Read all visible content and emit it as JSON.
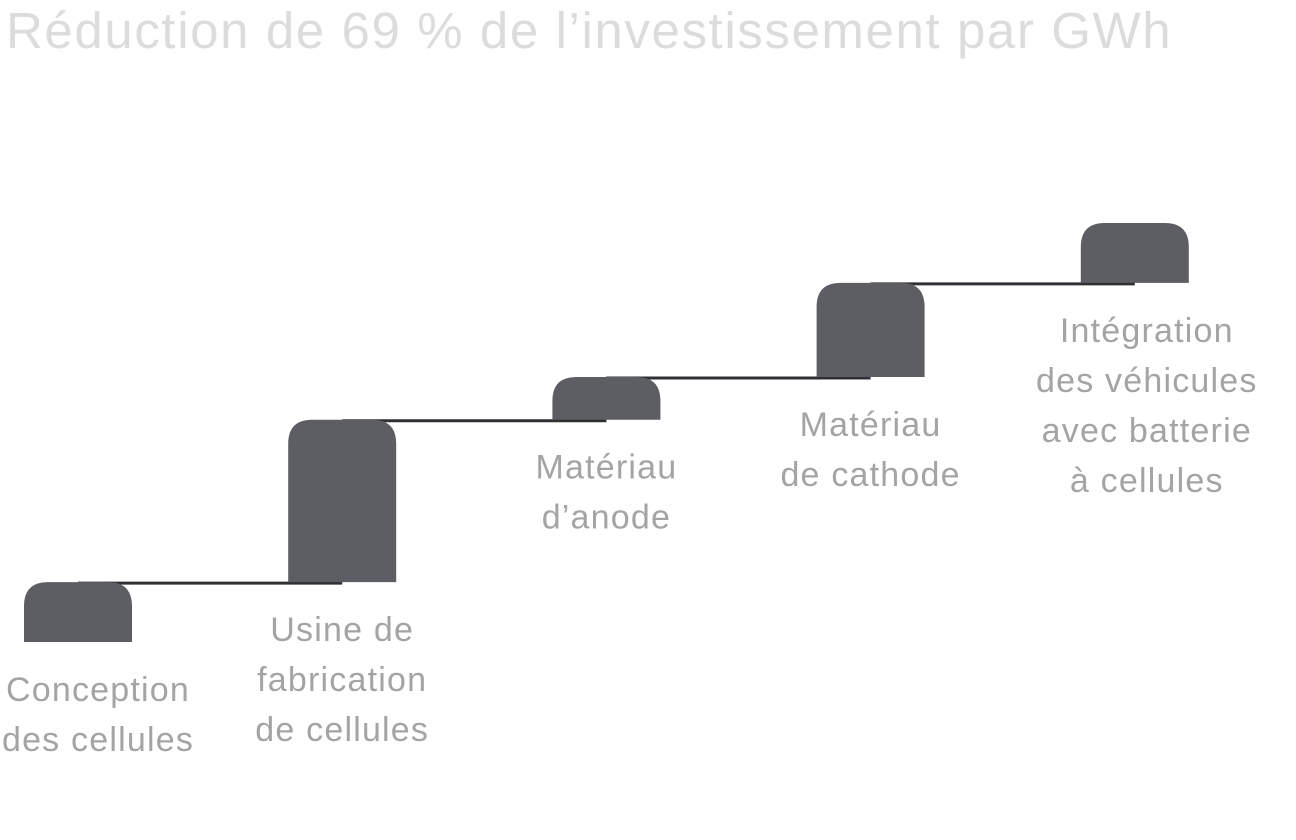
{
  "chart_data": {
    "type": "bar",
    "subtype": "waterfall-staircase",
    "title": "Réduction de 69 % de l’investissement par GWh",
    "xlabel": "",
    "ylabel": "",
    "ylim": [
      0,
      69
    ],
    "grid": false,
    "legend": "none",
    "categories": [
      [
        "Conception",
        "des cellules"
      ],
      [
        "Usine de",
        "fabrication",
        "de cellules"
      ],
      [
        "Matériau",
        "d’anode"
      ],
      [
        "Matériau",
        "de cathode"
      ],
      [
        "Intégration",
        "des véhicules",
        "avec batterie",
        "à cellules"
      ]
    ],
    "values": [
      7,
      19,
      5,
      11,
      7
    ],
    "colors": {
      "bar": "#5d5e63",
      "connector": "#2f3034",
      "label": "#a4a4a4",
      "title": "#dcdcdc"
    }
  }
}
